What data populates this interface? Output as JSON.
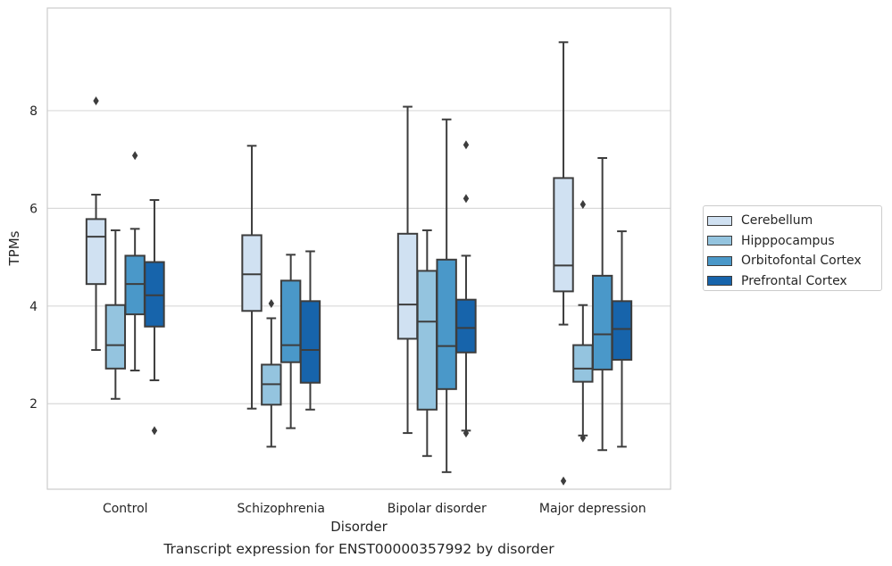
{
  "caption": "Transcript expression for ENST00000357992 by disorder",
  "legend": {
    "items": [
      {
        "label": "Cerebellum",
        "color": "#d0e1f2"
      },
      {
        "label": "Hipppocampus",
        "color": "#94c4df"
      },
      {
        "label": "Orbitofontal Cortex",
        "color": "#4a98c9"
      },
      {
        "label": "Prefrontal Cortex",
        "color": "#1764ab"
      }
    ]
  },
  "chart_data": {
    "type": "box",
    "title": "",
    "xlabel": "Disorder",
    "ylabel": "TPMs",
    "categories": [
      "Control",
      "Schizophrenia",
      "Bipolar disorder",
      "Major depression"
    ],
    "yticks": [
      2,
      4,
      6,
      8
    ],
    "ylim": [
      0.25,
      10.1
    ],
    "grid": "horizontal",
    "legend_position": "right",
    "series": [
      {
        "name": "Cerebellum",
        "color": "#d0e1f2",
        "boxes": [
          {
            "whislo": 3.1,
            "q1": 4.45,
            "med": 5.42,
            "q3": 5.78,
            "whishi": 6.28,
            "fliers": [
              8.2
            ]
          },
          {
            "whislo": 1.9,
            "q1": 3.9,
            "med": 4.65,
            "q3": 5.45,
            "whishi": 7.28,
            "fliers": []
          },
          {
            "whislo": 1.4,
            "q1": 3.33,
            "med": 4.03,
            "q3": 5.48,
            "whishi": 8.08,
            "fliers": []
          },
          {
            "whislo": 3.62,
            "q1": 4.3,
            "med": 4.83,
            "q3": 6.62,
            "whishi": 9.4,
            "fliers": [
              0.42
            ]
          }
        ]
      },
      {
        "name": "Hipppocampus",
        "color": "#94c4df",
        "boxes": [
          {
            "whislo": 2.1,
            "q1": 2.72,
            "med": 3.2,
            "q3": 4.02,
            "whishi": 5.55,
            "fliers": []
          },
          {
            "whislo": 1.12,
            "q1": 1.98,
            "med": 2.4,
            "q3": 2.8,
            "whishi": 3.75,
            "fliers": [
              4.05
            ]
          },
          {
            "whislo": 0.93,
            "q1": 1.88,
            "med": 3.68,
            "q3": 4.72,
            "whishi": 5.55,
            "fliers": []
          },
          {
            "whislo": 1.35,
            "q1": 2.45,
            "med": 2.72,
            "q3": 3.2,
            "whishi": 4.02,
            "fliers": [
              1.3,
              6.08
            ]
          }
        ]
      },
      {
        "name": "Orbitofontal Cortex",
        "color": "#4a98c9",
        "boxes": [
          {
            "whislo": 2.68,
            "q1": 3.83,
            "med": 4.45,
            "q3": 5.03,
            "whishi": 5.58,
            "fliers": [
              7.08
            ]
          },
          {
            "whislo": 1.5,
            "q1": 2.85,
            "med": 3.2,
            "q3": 4.52,
            "whishi": 5.05,
            "fliers": []
          },
          {
            "whislo": 0.6,
            "q1": 2.3,
            "med": 3.18,
            "q3": 4.95,
            "whishi": 7.82,
            "fliers": []
          },
          {
            "whislo": 1.05,
            "q1": 2.7,
            "med": 3.42,
            "q3": 4.62,
            "whishi": 7.03,
            "fliers": []
          }
        ]
      },
      {
        "name": "Prefrontal Cortex",
        "color": "#1764ab",
        "boxes": [
          {
            "whislo": 2.48,
            "q1": 3.58,
            "med": 4.22,
            "q3": 4.9,
            "whishi": 6.17,
            "fliers": [
              1.45
            ]
          },
          {
            "whislo": 1.88,
            "q1": 2.43,
            "med": 3.1,
            "q3": 4.1,
            "whishi": 5.12,
            "fliers": []
          },
          {
            "whislo": 1.45,
            "q1": 3.05,
            "med": 3.55,
            "q3": 4.13,
            "whishi": 5.03,
            "fliers": [
              1.4,
              6.2,
              7.3
            ]
          },
          {
            "whislo": 1.12,
            "q1": 2.9,
            "med": 3.53,
            "q3": 4.1,
            "whishi": 5.53,
            "fliers": []
          }
        ]
      }
    ]
  }
}
